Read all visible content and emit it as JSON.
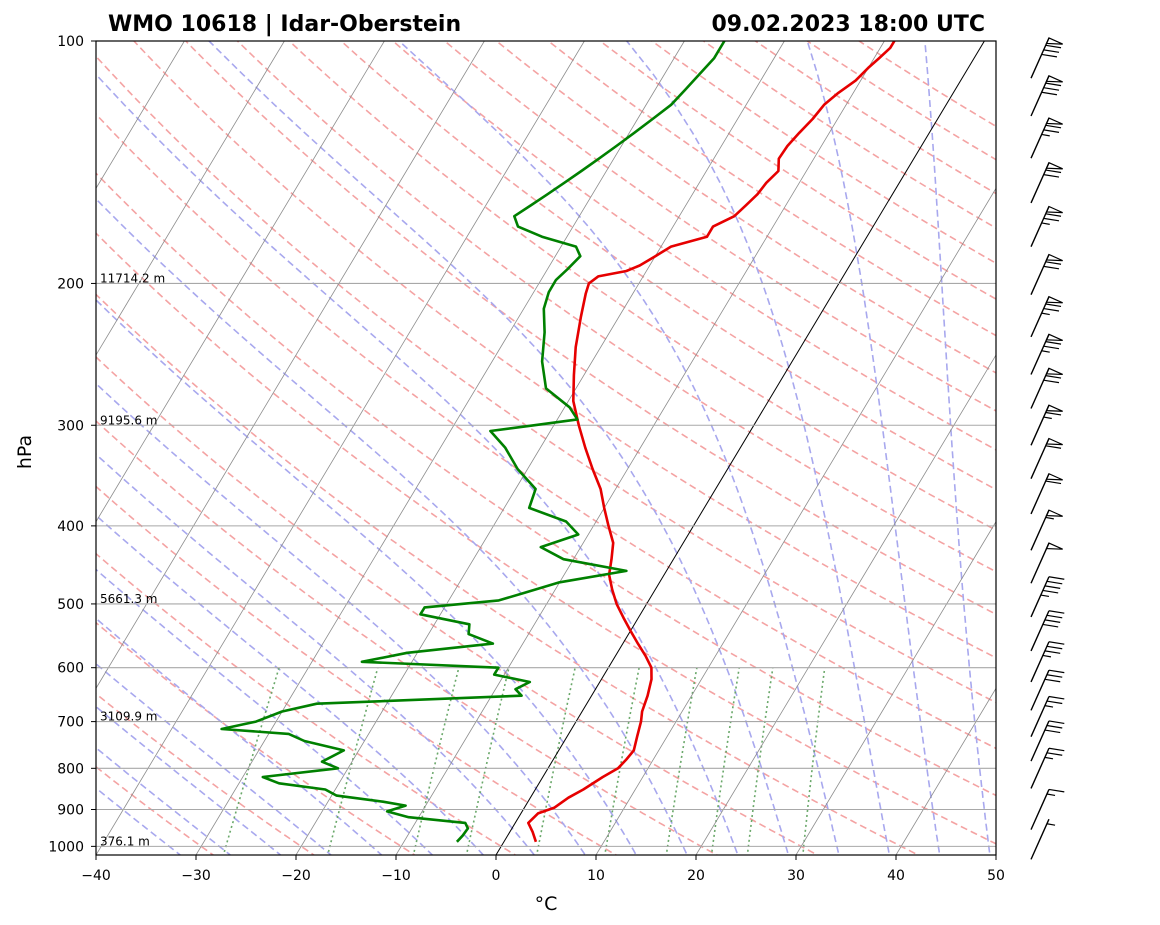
{
  "chart_data": {
    "type": "skew-t log-p sounding",
    "title_left": "WMO 10618 | Idar-Oberstein",
    "title_right": "09.02.2023 18:00 UTC",
    "xlabel": "°C",
    "ylabel": "hPa",
    "xlim": [
      -40,
      50
    ],
    "ylim": [
      1025,
      100
    ],
    "y_scale": "log",
    "x_ticks": [
      -40,
      -30,
      -20,
      -10,
      0,
      10,
      20,
      30,
      40,
      50
    ],
    "x_tick_labels": [
      "−40",
      "−30",
      "−20",
      "−10",
      "0",
      "10",
      "20",
      "30",
      "40",
      "50"
    ],
    "y_ticks": [
      100,
      200,
      300,
      400,
      500,
      600,
      700,
      800,
      900,
      1000
    ],
    "y_tick_labels": [
      "100",
      "200",
      "300",
      "400",
      "500",
      "600",
      "700",
      "800",
      "900",
      "1000"
    ],
    "grid": true,
    "height_labels": [
      {
        "p": 200,
        "label": "11714.2 m"
      },
      {
        "p": 300,
        "label": "9195.6 m"
      },
      {
        "p": 500,
        "label": "5661.3 m"
      },
      {
        "p": 700,
        "label": "3109.9 m"
      },
      {
        "p": 1000,
        "label": "376.1 m"
      }
    ],
    "series": [
      {
        "color": "#e60000",
        "points": [
          [
            987,
            3.2
          ],
          [
            960,
            2.3
          ],
          [
            935,
            1.3
          ],
          [
            910,
            1.7
          ],
          [
            895,
            3
          ],
          [
            870,
            3.8
          ],
          [
            850,
            4.8
          ],
          [
            820,
            6
          ],
          [
            800,
            7
          ],
          [
            780,
            7.3
          ],
          [
            760,
            7.5
          ],
          [
            730,
            7
          ],
          [
            700,
            6.5
          ],
          [
            680,
            6
          ],
          [
            650,
            5.6
          ],
          [
            620,
            5
          ],
          [
            600,
            4.3
          ],
          [
            580,
            3
          ],
          [
            560,
            1.5
          ],
          [
            540,
            0
          ],
          [
            520,
            -1.5
          ],
          [
            500,
            -3
          ],
          [
            480,
            -4.3
          ],
          [
            460,
            -5.5
          ],
          [
            440,
            -6.2
          ],
          [
            420,
            -7
          ],
          [
            400,
            -8.5
          ],
          [
            380,
            -10
          ],
          [
            360,
            -11.5
          ],
          [
            340,
            -13.5
          ],
          [
            320,
            -15.5
          ],
          [
            300,
            -17.5
          ],
          [
            280,
            -19.5
          ],
          [
            260,
            -21
          ],
          [
            240,
            -22.5
          ],
          [
            220,
            -23.8
          ],
          [
            206,
            -24.7
          ],
          [
            200,
            -25
          ],
          [
            196,
            -24.5
          ],
          [
            193,
            -22
          ],
          [
            190,
            -21
          ],
          [
            185,
            -20
          ],
          [
            180,
            -19
          ],
          [
            175,
            -16
          ],
          [
            170,
            -16
          ],
          [
            165,
            -14.5
          ],
          [
            160,
            -14
          ],
          [
            155,
            -13.5
          ],
          [
            150,
            -13.3
          ],
          [
            145,
            -12.8
          ],
          [
            140,
            -13.5
          ],
          [
            135,
            -13.4
          ],
          [
            130,
            -13
          ],
          [
            125,
            -12.5
          ],
          [
            120,
            -12.2
          ],
          [
            116,
            -11.5
          ],
          [
            112,
            -10.5
          ],
          [
            108,
            -10
          ],
          [
            105,
            -9.5
          ],
          [
            102,
            -9
          ],
          [
            100,
            -9
          ]
        ]
      },
      {
        "color": "#008000",
        "points": [
          [
            987,
            -4.7
          ],
          [
            970,
            -4.5
          ],
          [
            950,
            -4.4
          ],
          [
            935,
            -5
          ],
          [
            920,
            -11
          ],
          [
            905,
            -13.5
          ],
          [
            890,
            -12
          ],
          [
            880,
            -14.5
          ],
          [
            865,
            -19.5
          ],
          [
            850,
            -21
          ],
          [
            835,
            -26
          ],
          [
            820,
            -28
          ],
          [
            800,
            -21
          ],
          [
            785,
            -23
          ],
          [
            760,
            -21.5
          ],
          [
            740,
            -26
          ],
          [
            725,
            -28
          ],
          [
            715,
            -35
          ],
          [
            700,
            -32
          ],
          [
            680,
            -30
          ],
          [
            665,
            -27
          ],
          [
            650,
            -7
          ],
          [
            638,
            -8
          ],
          [
            625,
            -7
          ],
          [
            612,
            -11
          ],
          [
            600,
            -11
          ],
          [
            590,
            -25
          ],
          [
            575,
            -21
          ],
          [
            560,
            -13
          ],
          [
            545,
            -16
          ],
          [
            530,
            -16.5
          ],
          [
            515,
            -22
          ],
          [
            505,
            -22
          ],
          [
            495,
            -15
          ],
          [
            485,
            -13
          ],
          [
            470,
            -10
          ],
          [
            455,
            -4
          ],
          [
            440,
            -11
          ],
          [
            425,
            -14
          ],
          [
            410,
            -11
          ],
          [
            395,
            -13
          ],
          [
            380,
            -17.5
          ],
          [
            360,
            -18
          ],
          [
            340,
            -21
          ],
          [
            320,
            -23.5
          ],
          [
            305,
            -26
          ],
          [
            300,
            -22
          ],
          [
            295,
            -18
          ],
          [
            285,
            -19.5
          ],
          [
            270,
            -23
          ],
          [
            250,
            -25
          ],
          [
            230,
            -26.5
          ],
          [
            215,
            -28
          ],
          [
            205,
            -28.5
          ],
          [
            198,
            -28.5
          ],
          [
            192,
            -28
          ],
          [
            185,
            -27.5
          ],
          [
            180,
            -28.5
          ],
          [
            175,
            -32.5
          ],
          [
            170,
            -35.5
          ],
          [
            165,
            -36.5
          ],
          [
            160,
            -35.5
          ],
          [
            155,
            -34.5
          ],
          [
            150,
            -33.5
          ],
          [
            145,
            -32.5
          ],
          [
            140,
            -31.5
          ],
          [
            135,
            -30.5
          ],
          [
            130,
            -29.5
          ],
          [
            125,
            -28.5
          ],
          [
            120,
            -27.5
          ],
          [
            115,
            -27
          ],
          [
            110,
            -26.5
          ],
          [
            105,
            -26
          ],
          [
            100,
            -26
          ]
        ]
      }
    ],
    "wind_barbs": [
      {
        "p": 980,
        "speed_kt": 5
      },
      {
        "p": 900,
        "speed_kt": 15
      },
      {
        "p": 800,
        "speed_kt": 25
      },
      {
        "p": 740,
        "speed_kt": 30
      },
      {
        "p": 690,
        "speed_kt": 25
      },
      {
        "p": 640,
        "speed_kt": 30
      },
      {
        "p": 590,
        "speed_kt": 35
      },
      {
        "p": 540,
        "speed_kt": 40
      },
      {
        "p": 490,
        "speed_kt": 45
      },
      {
        "p": 445,
        "speed_kt": 50
      },
      {
        "p": 405,
        "speed_kt": 55
      },
      {
        "p": 365,
        "speed_kt": 60
      },
      {
        "p": 330,
        "speed_kt": 60
      },
      {
        "p": 300,
        "speed_kt": 65
      },
      {
        "p": 270,
        "speed_kt": 70
      },
      {
        "p": 245,
        "speed_kt": 75
      },
      {
        "p": 220,
        "speed_kt": 75
      },
      {
        "p": 195,
        "speed_kt": 70
      },
      {
        "p": 170,
        "speed_kt": 75
      },
      {
        "p": 150,
        "speed_kt": 70
      },
      {
        "p": 132,
        "speed_kt": 75
      },
      {
        "p": 117,
        "speed_kt": 80
      },
      {
        "p": 105,
        "speed_kt": 80
      }
    ],
    "colors": {
      "temperature": "#e60000",
      "dewpoint": "#008000",
      "dry_adiabat": "#f4a3a3",
      "moist_adiabat": "#a8a8ee",
      "mixing_ratio": "#6aa86a",
      "isotherm": "#8c8c8c",
      "isobar": "#a8a8a8"
    }
  }
}
